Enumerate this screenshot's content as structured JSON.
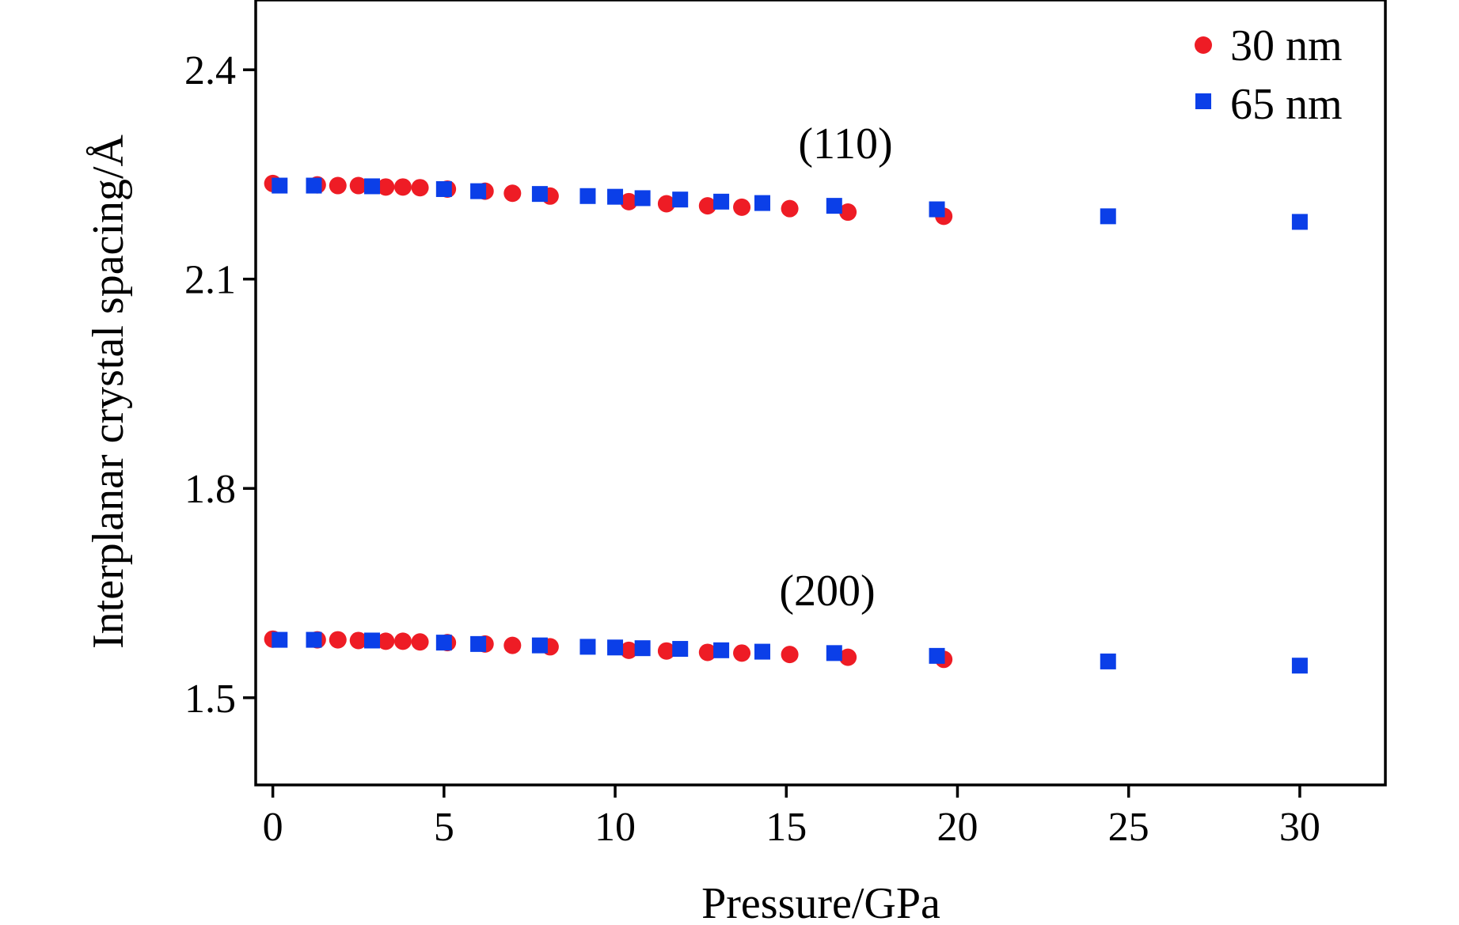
{
  "chart_data": {
    "type": "scatter",
    "title": "",
    "xlabel": "Pressure/GPa",
    "ylabel": "Interplanar crystal spacing/Å",
    "xlim": [
      -0.5,
      32.5
    ],
    "ylim": [
      1.375,
      2.5
    ],
    "xticks": [
      0,
      5,
      10,
      15,
      20,
      25,
      30
    ],
    "xtick_labels": [
      "0",
      "5",
      "10",
      "15",
      "20",
      "25",
      "30"
    ],
    "yticks": [
      1.5,
      1.8,
      2.1,
      2.4
    ],
    "ytick_labels": [
      "1.5",
      "1.8",
      "2.1",
      "2.4"
    ],
    "grid": false,
    "legend_position": "top-right",
    "annotations": [
      {
        "text": "(110)",
        "x": 16.9,
        "y": 2.261
      },
      {
        "text": "(200)",
        "x": 16.0,
        "y": 1.607
      }
    ],
    "series": [
      {
        "name": "30 nm",
        "marker": "circle",
        "color": "#ee1c25",
        "points": [
          [
            0.0,
            2.237
          ],
          [
            1.3,
            2.235
          ],
          [
            1.9,
            2.234
          ],
          [
            2.5,
            2.234
          ],
          [
            3.3,
            2.232
          ],
          [
            3.8,
            2.232
          ],
          [
            4.3,
            2.231
          ],
          [
            5.1,
            2.229
          ],
          [
            6.2,
            2.226
          ],
          [
            7.0,
            2.223
          ],
          [
            8.1,
            2.219
          ],
          [
            10.4,
            2.211
          ],
          [
            11.5,
            2.208
          ],
          [
            12.7,
            2.205
          ],
          [
            13.7,
            2.203
          ],
          [
            15.1,
            2.201
          ],
          [
            16.8,
            2.196
          ],
          [
            19.6,
            2.19
          ],
          [
            0.0,
            1.584
          ],
          [
            1.3,
            1.583
          ],
          [
            1.9,
            1.583
          ],
          [
            2.5,
            1.582
          ],
          [
            3.3,
            1.581
          ],
          [
            3.8,
            1.581
          ],
          [
            4.3,
            1.58
          ],
          [
            5.1,
            1.579
          ],
          [
            6.2,
            1.577
          ],
          [
            7.0,
            1.575
          ],
          [
            8.1,
            1.573
          ],
          [
            10.4,
            1.568
          ],
          [
            11.5,
            1.567
          ],
          [
            12.7,
            1.565
          ],
          [
            13.7,
            1.564
          ],
          [
            15.1,
            1.562
          ],
          [
            16.8,
            1.558
          ],
          [
            19.6,
            1.555
          ]
        ]
      },
      {
        "name": "65 nm",
        "marker": "square",
        "color": "#0b3fe8",
        "points": [
          [
            0.2,
            2.234
          ],
          [
            1.2,
            2.234
          ],
          [
            2.9,
            2.233
          ],
          [
            5.0,
            2.229
          ],
          [
            6.0,
            2.226
          ],
          [
            7.8,
            2.222
          ],
          [
            9.2,
            2.219
          ],
          [
            10.0,
            2.218
          ],
          [
            10.8,
            2.216
          ],
          [
            11.9,
            2.214
          ],
          [
            13.1,
            2.211
          ],
          [
            14.3,
            2.209
          ],
          [
            16.4,
            2.205
          ],
          [
            19.4,
            2.2
          ],
          [
            24.4,
            2.19
          ],
          [
            30.0,
            2.182
          ],
          [
            0.2,
            1.583
          ],
          [
            1.2,
            1.583
          ],
          [
            2.9,
            1.582
          ],
          [
            5.0,
            1.579
          ],
          [
            6.0,
            1.577
          ],
          [
            7.8,
            1.575
          ],
          [
            9.2,
            1.573
          ],
          [
            10.0,
            1.572
          ],
          [
            10.8,
            1.571
          ],
          [
            11.9,
            1.57
          ],
          [
            13.1,
            1.568
          ],
          [
            14.3,
            1.566
          ],
          [
            16.4,
            1.564
          ],
          [
            19.4,
            1.56
          ],
          [
            24.4,
            1.552
          ],
          [
            30.0,
            1.546
          ]
        ]
      }
    ]
  }
}
